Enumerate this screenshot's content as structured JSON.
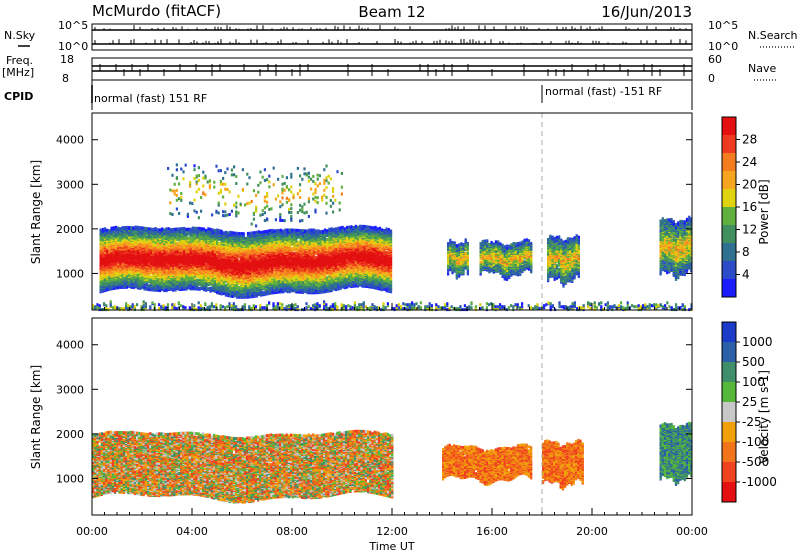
{
  "header": {
    "station": "McMurdo (fitACF)",
    "beam": "Beam 12",
    "date": "16/Jun/2013"
  },
  "noise_panel": {
    "left_label": "N.Sky",
    "right_label": "N.Search",
    "ticks_left": [
      "10^5",
      "10^0"
    ],
    "ticks_right": [
      "10^5",
      "10^0"
    ]
  },
  "freq_panel": {
    "left_label_line1": "Freq.",
    "left_label_line2": "[MHz]",
    "right_label": "Nave",
    "ticks_left": [
      "18",
      "8"
    ],
    "ticks_right": [
      "60",
      "0"
    ]
  },
  "cpid": {
    "label": "CPID",
    "segments": [
      {
        "start_hour": 0,
        "text": "normal (fast) 151 RF"
      },
      {
        "start_hour": 18,
        "text": "normal (fast) -151 RF"
      }
    ]
  },
  "colors": {
    "power": [
      "#1b1bff",
      "#2b4bc8",
      "#2f6f8f",
      "#3f8f5f",
      "#5fb03f",
      "#dfd20f",
      "#f7a51e",
      "#f47b1e",
      "#ee3a1e",
      "#e30f10"
    ],
    "velocity": [
      "#1b3cc8",
      "#2b5fa8",
      "#3f8f6a",
      "#55b83a",
      "#c8c8c8",
      "#f2a00a",
      "#f2741a",
      "#f0421e",
      "#e30f10"
    ]
  },
  "chart_data": [
    {
      "type": "heatmap",
      "panel": "power",
      "x": {
        "label": "Time UT",
        "range_hours": [
          0,
          24
        ],
        "ticks": [
          "00:00",
          "04:00",
          "08:00",
          "12:00",
          "16:00",
          "20:00",
          "00:00"
        ]
      },
      "y": {
        "label": "Slant Range [km]",
        "range": [
          180,
          4600
        ],
        "ticks": [
          1000,
          2000,
          3000,
          4000
        ]
      },
      "colorbar": {
        "label": "Power [dB]",
        "range": [
          0,
          32
        ],
        "ticks": [
          "4",
          "8",
          "12",
          "16",
          "20",
          "24",
          "28"
        ]
      },
      "echo_regions": [
        {
          "start_hour": 0.3,
          "end_hour": 12.0,
          "range_low": 600,
          "range_high": 2000,
          "level": "high"
        },
        {
          "start_hour": 3.0,
          "end_hour": 10.0,
          "range_low": 2200,
          "range_high": 3400,
          "level": "scattered"
        },
        {
          "start_hour": 14.2,
          "end_hour": 15.0,
          "range_low": 1000,
          "range_high": 1700,
          "level": "medium"
        },
        {
          "start_hour": 15.5,
          "end_hour": 17.6,
          "range_low": 1000,
          "range_high": 1700,
          "level": "medium"
        },
        {
          "start_hour": 18.2,
          "end_hour": 19.5,
          "range_low": 850,
          "range_high": 1800,
          "level": "medium"
        },
        {
          "start_hour": 22.7,
          "end_hour": 24.0,
          "range_low": 1000,
          "range_high": 2200,
          "level": "medium"
        },
        {
          "start_hour": 0.0,
          "end_hour": 24.0,
          "range_low": 180,
          "range_high": 500,
          "level": "ground"
        }
      ]
    },
    {
      "type": "heatmap",
      "panel": "velocity",
      "x": {
        "label": "Time UT",
        "range_hours": [
          0,
          24
        ],
        "ticks": [
          "00:00",
          "04:00",
          "08:00",
          "12:00",
          "16:00",
          "20:00",
          "00:00"
        ]
      },
      "y": {
        "label": "Slant Range [km]",
        "range": [
          180,
          4600
        ],
        "ticks": [
          1000,
          2000,
          3000,
          4000
        ]
      },
      "colorbar": {
        "label": "Velocity [m s-1]",
        "ticks": [
          "1000",
          "500",
          "100",
          "25",
          "-25",
          "-100",
          "-500",
          "-1000"
        ]
      },
      "echo_regions": [
        {
          "start_hour": 0.0,
          "end_hour": 12.0,
          "range_low": 600,
          "range_high": 2000,
          "level": "mixed"
        },
        {
          "start_hour": 14.0,
          "end_hour": 17.6,
          "range_low": 1000,
          "range_high": 1700,
          "level": "negative"
        },
        {
          "start_hour": 18.0,
          "end_hour": 19.6,
          "range_low": 900,
          "range_high": 1800,
          "level": "negative"
        },
        {
          "start_hour": 22.7,
          "end_hour": 24.0,
          "range_low": 1000,
          "range_high": 2200,
          "level": "positive"
        }
      ]
    }
  ]
}
